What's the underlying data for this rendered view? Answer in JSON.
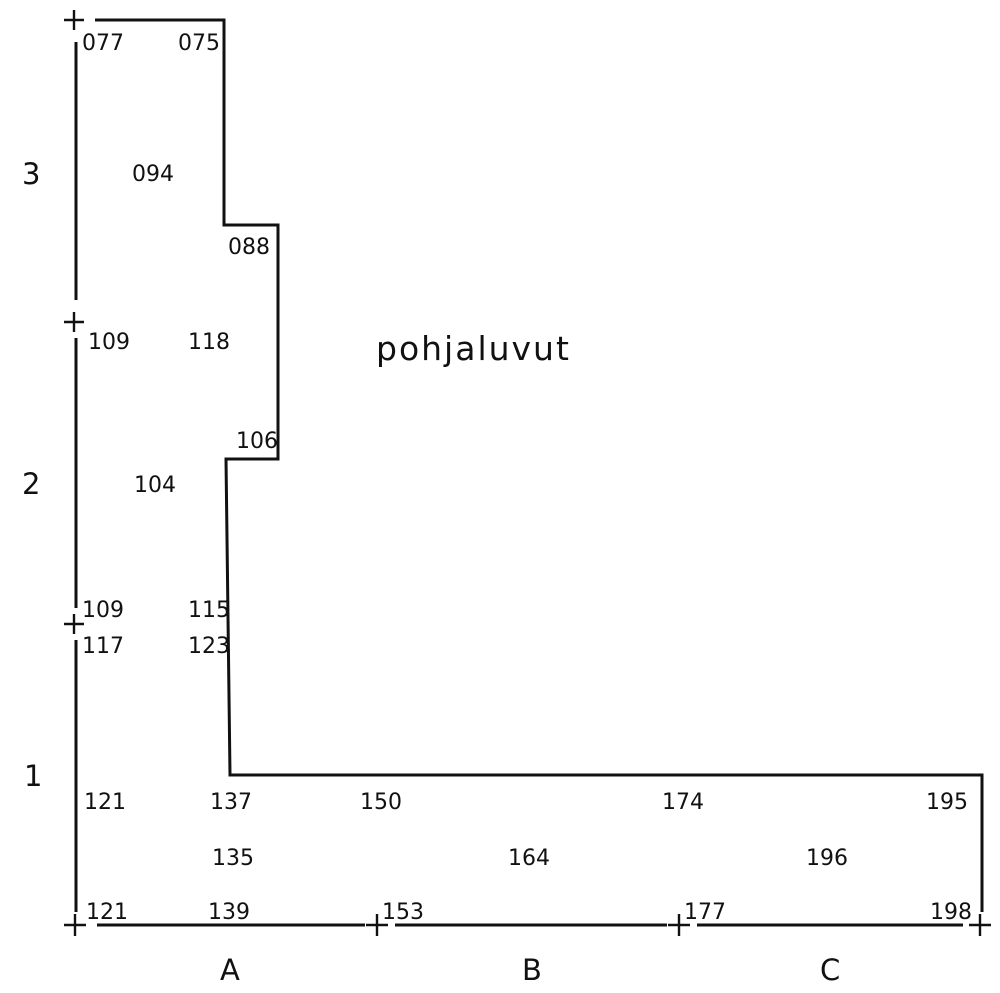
{
  "title": "pohjaluvut",
  "columns": [
    "A",
    "B",
    "C"
  ],
  "rows": [
    "3",
    "2",
    "1"
  ],
  "values": {
    "v077": "077",
    "v075": "075",
    "v094": "094",
    "v088": "088",
    "v109_top": "109",
    "v118": "118",
    "v106": "106",
    "v104": "104",
    "v109_mid": "109",
    "v115": "115",
    "v117": "117",
    "v123": "123",
    "v121_top": "121",
    "v137": "137",
    "v150": "150",
    "v174": "174",
    "v195": "195",
    "v135": "135",
    "v164": "164",
    "v196": "196",
    "v121_bottom": "121",
    "v139": "139",
    "v153": "153",
    "v177": "177",
    "v198": "198"
  }
}
